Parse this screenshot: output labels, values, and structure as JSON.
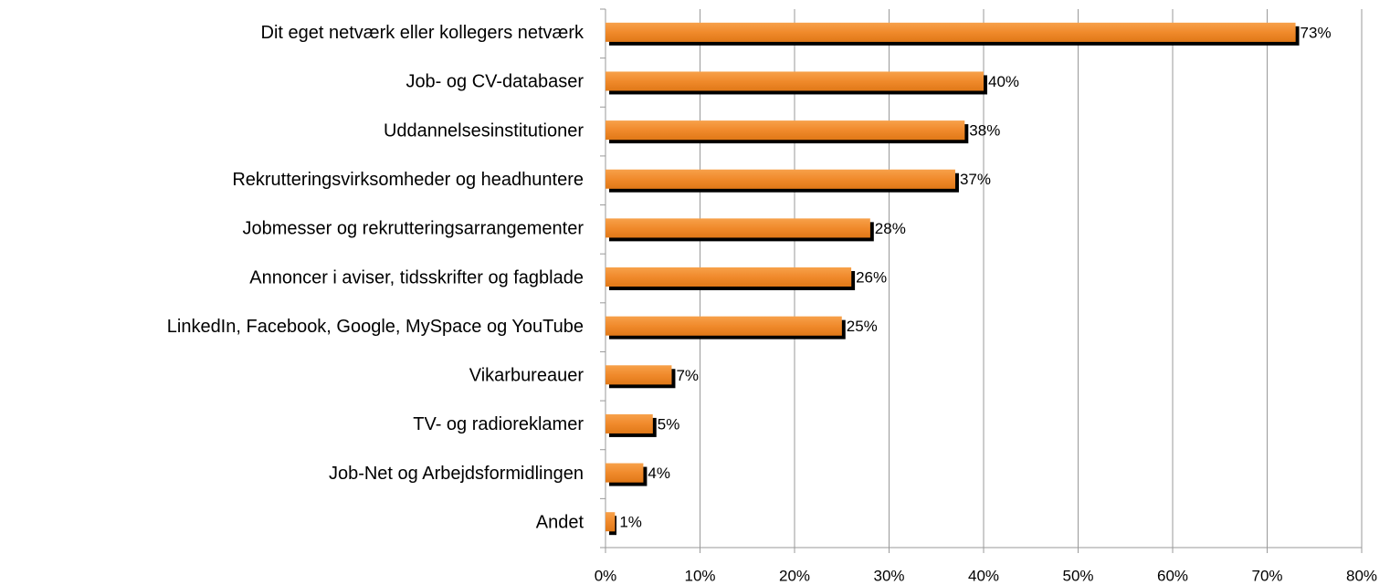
{
  "chart_data": {
    "type": "barh",
    "categories": [
      "Dit eget netværk eller kollegers netværk",
      "Job- og CV-databaser",
      "Uddannelsesinstitutioner",
      "Rekrutteringsvirksomheder og headhuntere",
      "Jobmesser og rekrutteringsarrangementer",
      "Annoncer i aviser, tidsskrifter og fagblade",
      "LinkedIn, Facebook, Google, MySpace og YouTube",
      "Vikarbureauer",
      "TV- og radioreklamer",
      "Job-Net og Arbejdsformidlingen",
      "Andet"
    ],
    "values": [
      73,
      40,
      38,
      37,
      28,
      26,
      25,
      7,
      5,
      4,
      1
    ],
    "value_labels": [
      "73%",
      "40%",
      "38%",
      "37%",
      "28%",
      "26%",
      "25%",
      "7%",
      "5%",
      "4%",
      "1%"
    ],
    "color": "#f08a2c",
    "xlim": [
      0,
      80
    ],
    "xticks": [
      {
        "value": 0,
        "label": "0%"
      },
      {
        "value": 10,
        "label": "10%"
      },
      {
        "value": 20,
        "label": "20%"
      },
      {
        "value": 30,
        "label": "30%"
      },
      {
        "value": 40,
        "label": "40%"
      },
      {
        "value": 50,
        "label": "50%"
      },
      {
        "value": 60,
        "label": "60%"
      },
      {
        "value": 70,
        "label": "70%"
      },
      {
        "value": 80,
        "label": "80%"
      }
    ],
    "grid": true
  }
}
